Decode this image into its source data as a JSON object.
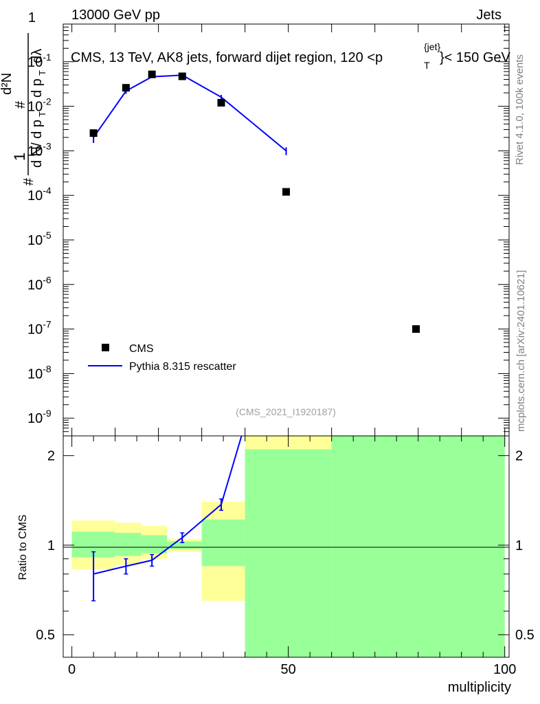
{
  "header": {
    "left": "13000 GeV pp",
    "right": "Jets"
  },
  "plot_title": "CMS, 13 TeV, AK8 jets, forward dijet region, 120 <p",
  "plot_title_sup": "{jet}",
  "plot_title_sub": "T",
  "plot_title_end": "}< 150 GeV",
  "side_labels": {
    "rivet": "Rivet 4.1.0,  100k events",
    "mcplots": "mcplots.cern.ch [arXiv:2401.10621]"
  },
  "analysis_id": "(CMS_2021_I1920187)",
  "legend": {
    "data_label": "CMS",
    "mc_label": "Pythia 8.315 rescatter"
  },
  "colors": {
    "data": "#000000",
    "mc": "#0000ff",
    "band_inner": "#99ff99",
    "band_outer": "#ffff99"
  },
  "chart_data": [
    {
      "type": "scatter",
      "panel": "main",
      "ylabel": "1/dN/dp_T d²N/dp_T dλ",
      "yscale": "log",
      "ylim": [
        4e-10,
        0.7
      ],
      "xlim": [
        -2,
        101
      ],
      "ytick_labels": [
        "10^-9",
        "10^-8",
        "10^-7",
        "10^-6",
        "10^-5",
        "10^-4",
        "10^-3",
        "10^-2",
        "10^-1",
        "1"
      ],
      "series": [
        {
          "name": "CMS",
          "marker": "square",
          "x": [
            5,
            12.5,
            18.5,
            25.5,
            34.5,
            49.5,
            79.5
          ],
          "y": [
            0.0025,
            0.026,
            0.052,
            0.047,
            0.012,
            0.00012,
            1e-07
          ]
        },
        {
          "name": "Pythia 8.315 rescatter",
          "line": true,
          "x": [
            5,
            12.5,
            18.5,
            25.5,
            34.5,
            49.5
          ],
          "y": [
            0.002,
            0.022,
            0.046,
            0.05,
            0.016,
            0.001
          ],
          "yerr": [
            0.0005,
            0.003,
            0.003,
            0.003,
            0.002,
            0.0002
          ]
        }
      ]
    },
    {
      "type": "line",
      "panel": "ratio",
      "ylabel": "Ratio to CMS",
      "xlabel": "multiplicity",
      "ylim": [
        0.42,
        2.33
      ],
      "xlim": [
        -2,
        101
      ],
      "xticks": [
        0,
        50,
        100
      ],
      "yticks": [
        0.5,
        1,
        2
      ],
      "bands": [
        {
          "x0": 0,
          "x1": 10,
          "inner": [
            0.91,
            1.11
          ],
          "outer": [
            0.83,
            1.21
          ]
        },
        {
          "x0": 10,
          "x1": 16,
          "inner": [
            0.92,
            1.1
          ],
          "outer": [
            0.86,
            1.19
          ]
        },
        {
          "x0": 16,
          "x1": 22,
          "inner": [
            0.94,
            1.08
          ],
          "outer": [
            0.9,
            1.16
          ]
        },
        {
          "x0": 22,
          "x1": 30,
          "inner": [
            0.97,
            1.03
          ],
          "outer": [
            0.95,
            1.05
          ]
        },
        {
          "x0": 30,
          "x1": 40,
          "inner": [
            0.85,
            1.22
          ],
          "outer": [
            0.65,
            1.4
          ]
        },
        {
          "x0": 40,
          "x1": 60,
          "inner": [
            0.42,
            2.1
          ],
          "outer": [
            0.42,
            2.33
          ]
        },
        {
          "x0": 60,
          "x1": 100,
          "inner": [
            0.42,
            2.33
          ],
          "outer": [
            0.42,
            2.33
          ]
        }
      ],
      "series": [
        {
          "name": "Pythia 8.315 rescatter",
          "x": [
            5,
            12.5,
            18.5,
            25.5,
            34.5,
            39.2
          ],
          "y": [
            0.8,
            0.85,
            0.89,
            1.06,
            1.37,
            2.33
          ],
          "yerr": [
            0.15,
            0.05,
            0.04,
            0.04,
            0.06,
            0
          ]
        }
      ]
    }
  ]
}
